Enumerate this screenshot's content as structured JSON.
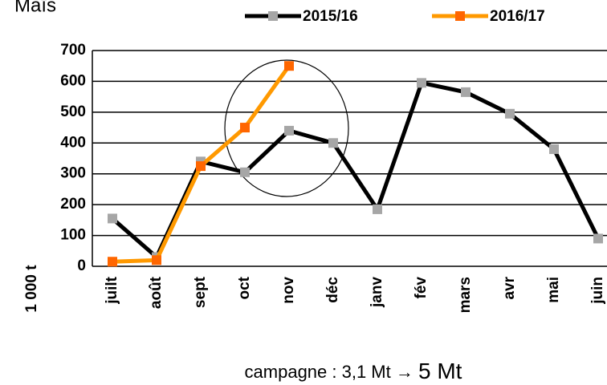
{
  "chart_data": {
    "type": "line",
    "title": "Maïs",
    "y_label": "1 000 t",
    "annotation": [
      "campagne : 3,1 Mt →",
      "5 Mt"
    ],
    "categories": [
      "juilt",
      "août",
      "sept",
      "oct",
      "nov",
      "déc",
      "janv",
      "fév",
      "mars",
      "avr",
      "mai",
      "juin"
    ],
    "series": [
      {
        "name": "2015/16",
        "color": "#000000",
        "marker_color": "#a6a6a6",
        "values": [
          155,
          30,
          340,
          305,
          440,
          400,
          185,
          595,
          565,
          495,
          380,
          90
        ]
      },
      {
        "name": "2016/17",
        "color": "#ff9900",
        "marker_color": "#ff6600",
        "values": [
          15,
          20,
          325,
          450,
          650,
          null,
          null,
          null,
          null,
          null,
          null,
          null
        ]
      }
    ],
    "ylim": [
      0,
      700
    ],
    "yticks": [
      0,
      100,
      200,
      300,
      400,
      500,
      600,
      700
    ],
    "grid": true
  }
}
